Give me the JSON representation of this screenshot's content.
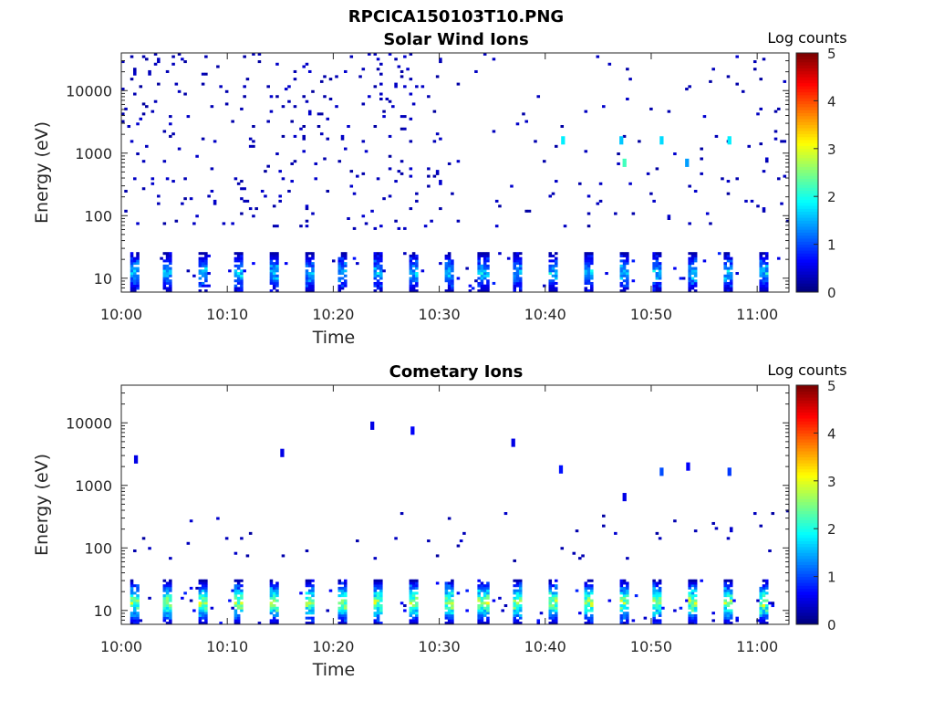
{
  "figure_title": "RPCICA150103T10.PNG",
  "chart_data": [
    {
      "type": "heatmap",
      "title": "Solar Wind Ions",
      "xlabel": "Time",
      "ylabel": "Energy (eV)",
      "x_ticks": [
        "10:00",
        "10:10",
        "10:20",
        "10:30",
        "10:40",
        "10:50",
        "11:00"
      ],
      "x_tick_minutes": [
        0,
        10,
        20,
        30,
        40,
        50,
        60
      ],
      "xlim_minutes": [
        0,
        63
      ],
      "y_scale": "log",
      "y_ticks": [
        "10",
        "100",
        "1000",
        "10000"
      ],
      "y_tick_values": [
        10,
        100,
        1000,
        10000
      ],
      "ylim": [
        6,
        40000
      ],
      "colorbar": {
        "label": "Log counts",
        "ticks": [
          "0",
          "1",
          "2",
          "3",
          "4",
          "5"
        ],
        "range": [
          0,
          5
        ],
        "colormap": "jet"
      },
      "grid": false,
      "features": {
        "low_energy_band_ev": [
          6,
          25
        ],
        "scan_period_minutes": 3.3,
        "sparse_background_ev": [
          60,
          40000
        ],
        "bright_spots": [
          {
            "time_min": 41.5,
            "energy_ev": 1600,
            "log_counts": 1.8
          },
          {
            "time_min": 47.0,
            "energy_ev": 1600,
            "log_counts": 1.6
          },
          {
            "time_min": 47.3,
            "energy_ev": 700,
            "log_counts": 2.2
          },
          {
            "time_min": 50.8,
            "energy_ev": 1600,
            "log_counts": 1.7
          },
          {
            "time_min": 57.2,
            "energy_ev": 1600,
            "log_counts": 1.8
          },
          {
            "time_min": 53.2,
            "energy_ev": 700,
            "log_counts": 1.4
          }
        ]
      }
    },
    {
      "type": "heatmap",
      "title": "Cometary Ions",
      "xlabel": "Time",
      "ylabel": "Energy (eV)",
      "x_ticks": [
        "10:00",
        "10:10",
        "10:20",
        "10:30",
        "10:40",
        "10:50",
        "11:00"
      ],
      "x_tick_minutes": [
        0,
        10,
        20,
        30,
        40,
        50,
        60
      ],
      "xlim_minutes": [
        0,
        63
      ],
      "y_scale": "log",
      "y_ticks": [
        "10",
        "100",
        "1000",
        "10000"
      ],
      "y_tick_values": [
        10,
        100,
        1000,
        10000
      ],
      "ylim": [
        6,
        40000
      ],
      "colorbar": {
        "label": "Log counts",
        "ticks": [
          "0",
          "1",
          "2",
          "3",
          "4",
          "5"
        ],
        "range": [
          0,
          5
        ],
        "colormap": "jet"
      },
      "grid": false,
      "features": {
        "low_energy_band_ev": [
          6,
          30
        ],
        "scan_period_minutes": 3.3,
        "band_peak_log_counts": 3.0,
        "sparse_background_ev": [
          60,
          400
        ],
        "isolated_points": [
          {
            "time_min": 1.2,
            "energy_ev": 2600,
            "log_counts": 0.5
          },
          {
            "time_min": 15.0,
            "energy_ev": 3300,
            "log_counts": 0.5
          },
          {
            "time_min": 23.5,
            "energy_ev": 9000,
            "log_counts": 0.5
          },
          {
            "time_min": 27.3,
            "energy_ev": 7500,
            "log_counts": 0.6
          },
          {
            "time_min": 36.8,
            "energy_ev": 4800,
            "log_counts": 0.5
          },
          {
            "time_min": 41.3,
            "energy_ev": 1800,
            "log_counts": 0.7
          },
          {
            "time_min": 47.3,
            "energy_ev": 650,
            "log_counts": 0.5
          },
          {
            "time_min": 50.8,
            "energy_ev": 1650,
            "log_counts": 1.0
          },
          {
            "time_min": 53.3,
            "energy_ev": 2000,
            "log_counts": 0.6
          },
          {
            "time_min": 57.2,
            "energy_ev": 1650,
            "log_counts": 0.9
          }
        ]
      }
    }
  ]
}
